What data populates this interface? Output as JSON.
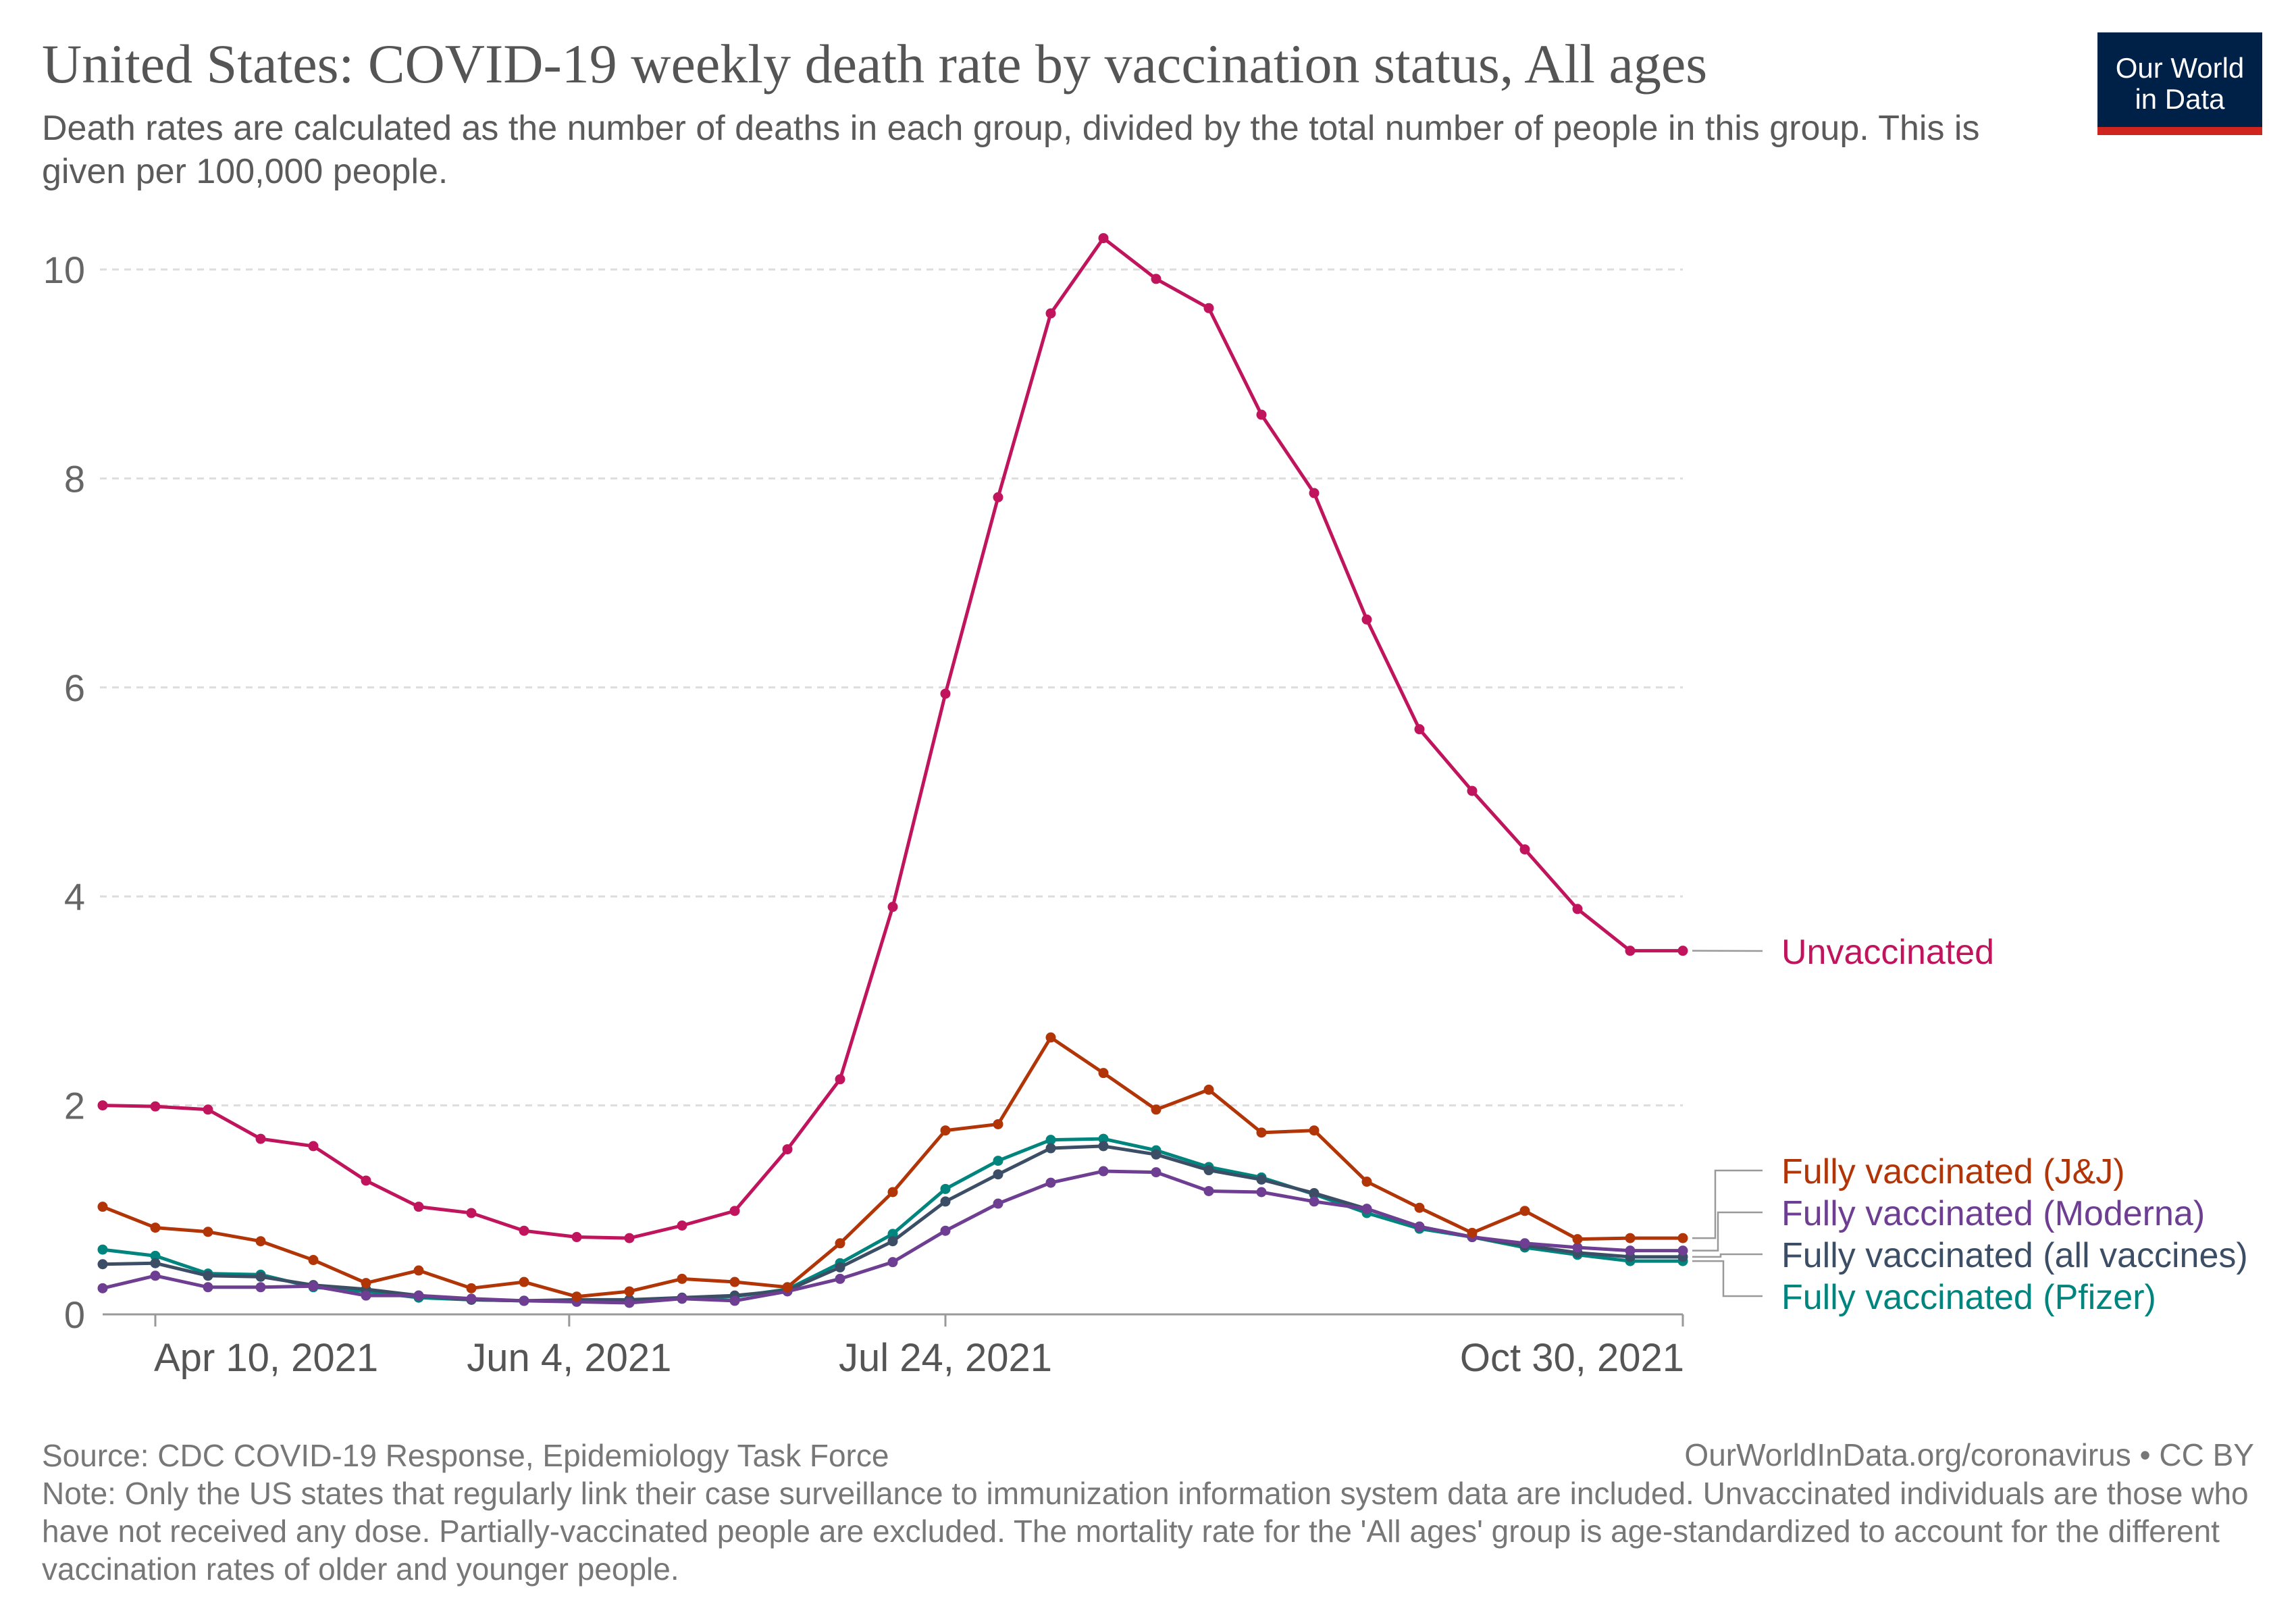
{
  "title": "United States: COVID-19 weekly death rate by vaccination status, All ages",
  "subtitle": "Death rates are calculated as the number of deaths in each group, divided by the total number of people in this group. This is given per 100,000 people.",
  "logo": {
    "line1": "Our World",
    "line2": "in Data"
  },
  "footer": {
    "source": "Source: CDC COVID-19 Response, Epidemiology Task Force",
    "url": "OurWorldInData.org/coronavirus • CC BY",
    "note": "Note: Only the US states that regularly link their case surveillance to immunization information system data are included. Unvaccinated individuals are those who have not received any dose. Partially-vaccinated people are excluded. The mortality rate for the 'All ages' group is age-standardized to account for the different vaccination rates of older and younger people."
  },
  "chart_data": {
    "type": "line",
    "x": [
      "2021-04-03",
      "2021-04-10",
      "2021-04-17",
      "2021-04-24",
      "2021-05-01",
      "2021-05-08",
      "2021-05-15",
      "2021-05-22",
      "2021-05-29",
      "2021-06-05",
      "2021-06-12",
      "2021-06-19",
      "2021-06-26",
      "2021-07-03",
      "2021-07-10",
      "2021-07-17",
      "2021-07-24",
      "2021-07-31",
      "2021-08-07",
      "2021-08-14",
      "2021-08-21",
      "2021-08-28",
      "2021-09-04",
      "2021-09-11",
      "2021-09-18",
      "2021-09-25",
      "2021-10-02",
      "2021-10-09",
      "2021-10-16",
      "2021-10-23",
      "2021-10-30"
    ],
    "x_ticks": [
      {
        "date": "2021-04-10",
        "label": "Apr 10, 2021"
      },
      {
        "date": "2021-06-04",
        "label": "Jun 4, 2021"
      },
      {
        "date": "2021-07-24",
        "label": "Jul 24, 2021"
      },
      {
        "date": "2021-10-30",
        "label": "Oct 30, 2021"
      }
    ],
    "x_range": [
      "2021-04-03",
      "2021-10-30"
    ],
    "y_ticks": [
      0,
      2,
      4,
      6,
      8,
      10
    ],
    "ylim": [
      0,
      10.3
    ],
    "grid": "horizontal dashed",
    "legend_placement": "right, line-end labels",
    "series": [
      {
        "name": "Unvaccinated",
        "color": "#c0145d",
        "values": [
          2.0,
          1.99,
          1.96,
          1.68,
          1.61,
          1.28,
          1.03,
          0.97,
          0.8,
          0.74,
          0.73,
          0.85,
          0.99,
          1.58,
          2.25,
          3.9,
          5.94,
          7.82,
          9.58,
          10.3,
          9.91,
          9.63,
          8.61,
          7.86,
          6.65,
          5.6,
          5.01,
          4.45,
          3.88,
          3.48,
          3.48
        ]
      },
      {
        "name": "Fully vaccinated (J&J)",
        "color": "#b13507",
        "values": [
          1.03,
          0.83,
          0.79,
          0.7,
          0.52,
          0.3,
          0.42,
          0.25,
          0.31,
          0.17,
          0.22,
          0.34,
          0.31,
          0.26,
          0.68,
          1.17,
          1.76,
          1.82,
          2.65,
          2.31,
          1.96,
          2.15,
          1.74,
          1.76,
          1.27,
          1.02,
          0.78,
          0.99,
          0.72,
          0.73,
          0.73
        ]
      },
      {
        "name": "Fully vaccinated (Moderna)",
        "color": "#6d3e91",
        "values": [
          0.25,
          0.37,
          0.26,
          0.26,
          0.27,
          0.18,
          0.18,
          0.15,
          0.13,
          0.12,
          0.11,
          0.15,
          0.13,
          0.22,
          0.34,
          0.5,
          0.8,
          1.06,
          1.26,
          1.37,
          1.36,
          1.18,
          1.17,
          1.08,
          1.01,
          0.84,
          0.74,
          0.68,
          0.64,
          0.61,
          0.61
        ]
      },
      {
        "name": "Fully vaccinated (all vaccines)",
        "color": "#3c4e66",
        "values": [
          0.48,
          0.49,
          0.37,
          0.36,
          0.28,
          0.24,
          0.18,
          0.14,
          0.13,
          0.14,
          0.14,
          0.16,
          0.18,
          0.23,
          0.45,
          0.7,
          1.08,
          1.34,
          1.59,
          1.61,
          1.53,
          1.38,
          1.29,
          1.16,
          1.01,
          0.84,
          0.74,
          0.66,
          0.59,
          0.55,
          0.55
        ]
      },
      {
        "name": "Fully vaccinated (Pfizer)",
        "color": "#00847e",
        "values": [
          0.62,
          0.56,
          0.39,
          0.38,
          0.26,
          0.22,
          0.16,
          0.14,
          0.13,
          0.13,
          0.14,
          0.15,
          0.17,
          0.24,
          0.49,
          0.77,
          1.2,
          1.47,
          1.67,
          1.68,
          1.57,
          1.41,
          1.31,
          1.15,
          0.97,
          0.82,
          0.74,
          0.64,
          0.57,
          0.51,
          0.51
        ]
      }
    ]
  }
}
